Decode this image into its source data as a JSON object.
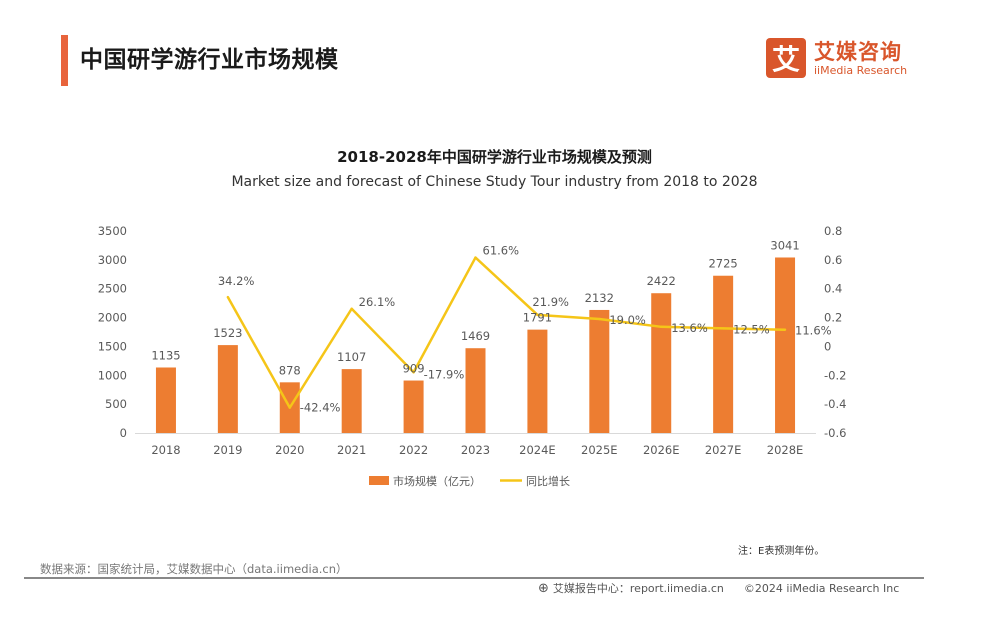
{
  "header": {
    "page_title": "中国研学游行业市场规模",
    "logo_mark": "艾",
    "logo_cn": "艾媒咨询",
    "logo_en": "iiMedia Research",
    "accent_color": "#e8643c"
  },
  "chart_data": {
    "type": "bar+line",
    "title": "2018-2028年中国研学游行业市场规模及预测",
    "subtitle": "Market size and forecast of Chinese Study Tour industry from 2018 to 2028",
    "categories": [
      "2018",
      "2019",
      "2020",
      "2021",
      "2022",
      "2023",
      "2024E",
      "2025E",
      "2026E",
      "2027E",
      "2028E"
    ],
    "series": [
      {
        "name": "市场规模（亿元）",
        "type": "bar",
        "axis": "left",
        "color": "#ed7d31",
        "values": [
          1135,
          1523,
          878,
          1107,
          909,
          1469,
          1791,
          2132,
          2422,
          2725,
          3041
        ],
        "labels": [
          "1135",
          "1523",
          "878",
          "1107",
          "909",
          "1469",
          "1791",
          "2132",
          "2422",
          "2725",
          "3041"
        ]
      },
      {
        "name": "同比增长",
        "type": "line",
        "axis": "right",
        "color": "#f5c518",
        "values": [
          null,
          0.342,
          -0.424,
          0.261,
          -0.179,
          0.616,
          0.219,
          0.19,
          0.136,
          0.125,
          0.116
        ],
        "labels": [
          "",
          "34.2%",
          "-42.4%",
          "26.1%",
          "-17.9%",
          "61.6%",
          "21.9%",
          "19.0%",
          "13.6%",
          "12.5%",
          "11.6%"
        ]
      }
    ],
    "left_axis": {
      "min": 0,
      "max": 3500,
      "ticks": [
        "0",
        "500",
        "1000",
        "1500",
        "2000",
        "2500",
        "3000",
        "3500"
      ]
    },
    "right_axis": {
      "min": -0.6,
      "max": 0.8,
      "ticks": [
        "-0.6",
        "-0.4",
        "-0.2",
        "0",
        "0.2",
        "0.4",
        "0.6",
        "0.8"
      ]
    },
    "grid": false,
    "legend_position": "bottom"
  },
  "footer": {
    "note": "注：E表预测年份。",
    "source": "数据来源：国家统计局，艾媒数据中心（data.iimedia.cn）",
    "report_center": "艾媒报告中心：report.iimedia.cn",
    "copyright": "©2024  iiMedia Research  Inc"
  }
}
